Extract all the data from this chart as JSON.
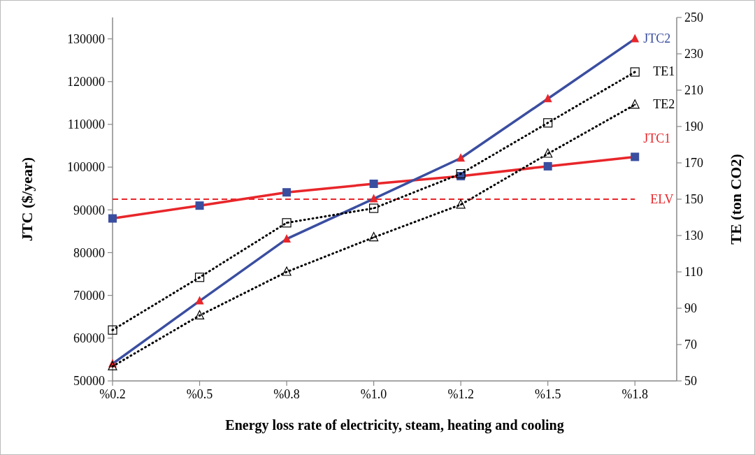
{
  "chart_data": {
    "type": "line",
    "xlabel": "Energy loss rate of electricity, steam, heating and cooling",
    "ylabel": "JTC ($/year)",
    "y2label": "TE (ton CO2)",
    "categories": [
      "%0.2",
      "%0.5",
      "%0.8",
      "%1.0",
      "%1.2",
      "%1.5",
      "%1.8"
    ],
    "ylim": [
      50000,
      135000
    ],
    "yticks": [
      50000,
      60000,
      70000,
      80000,
      90000,
      100000,
      110000,
      120000,
      130000
    ],
    "y2lim": [
      50,
      250
    ],
    "y2ticks": [
      50,
      70,
      90,
      110,
      130,
      150,
      170,
      190,
      210,
      230,
      250
    ],
    "grid": false,
    "series": [
      {
        "name": "JTC1",
        "color": "#e8262a",
        "colors": [
          "#3a4ea0",
          "#3a4ea0",
          "#3a4ea0",
          "#3a4ea0",
          "#3a4ea0",
          "#3a4ea0",
          "#3a4ea0"
        ],
        "marker": "square",
        "line_style": "solid",
        "values": [
          88000,
          91000,
          94100,
          96100,
          97900,
          100200,
          102400
        ]
      },
      {
        "name": "JTC2",
        "color": "#3a4ea0",
        "colors": [
          "#e8262a",
          "#e8262a",
          "#e8262a",
          "#e8262a",
          "#e8262a",
          "#e8262a",
          "#e8262a"
        ],
        "marker": "triangle",
        "line_style": "solid",
        "values": [
          54000,
          68700,
          83200,
          92600,
          102100,
          116000,
          130000
        ]
      },
      {
        "name": "TE1",
        "color": "#000000",
        "marker": "square",
        "line_style": "dotted",
        "axis": "y2",
        "values": [
          78,
          107,
          137,
          145,
          164,
          192,
          220
        ]
      },
      {
        "name": "TE2",
        "color": "#000000",
        "marker": "triangle",
        "line_style": "dotted",
        "axis": "y2",
        "values": [
          58,
          86,
          110,
          129,
          147,
          175,
          202
        ]
      }
    ],
    "ref_lines": [
      {
        "axis": "y",
        "value": 92500,
        "label": "ELV",
        "color": "#e8262a",
        "line_style": "dashed"
      }
    ]
  }
}
